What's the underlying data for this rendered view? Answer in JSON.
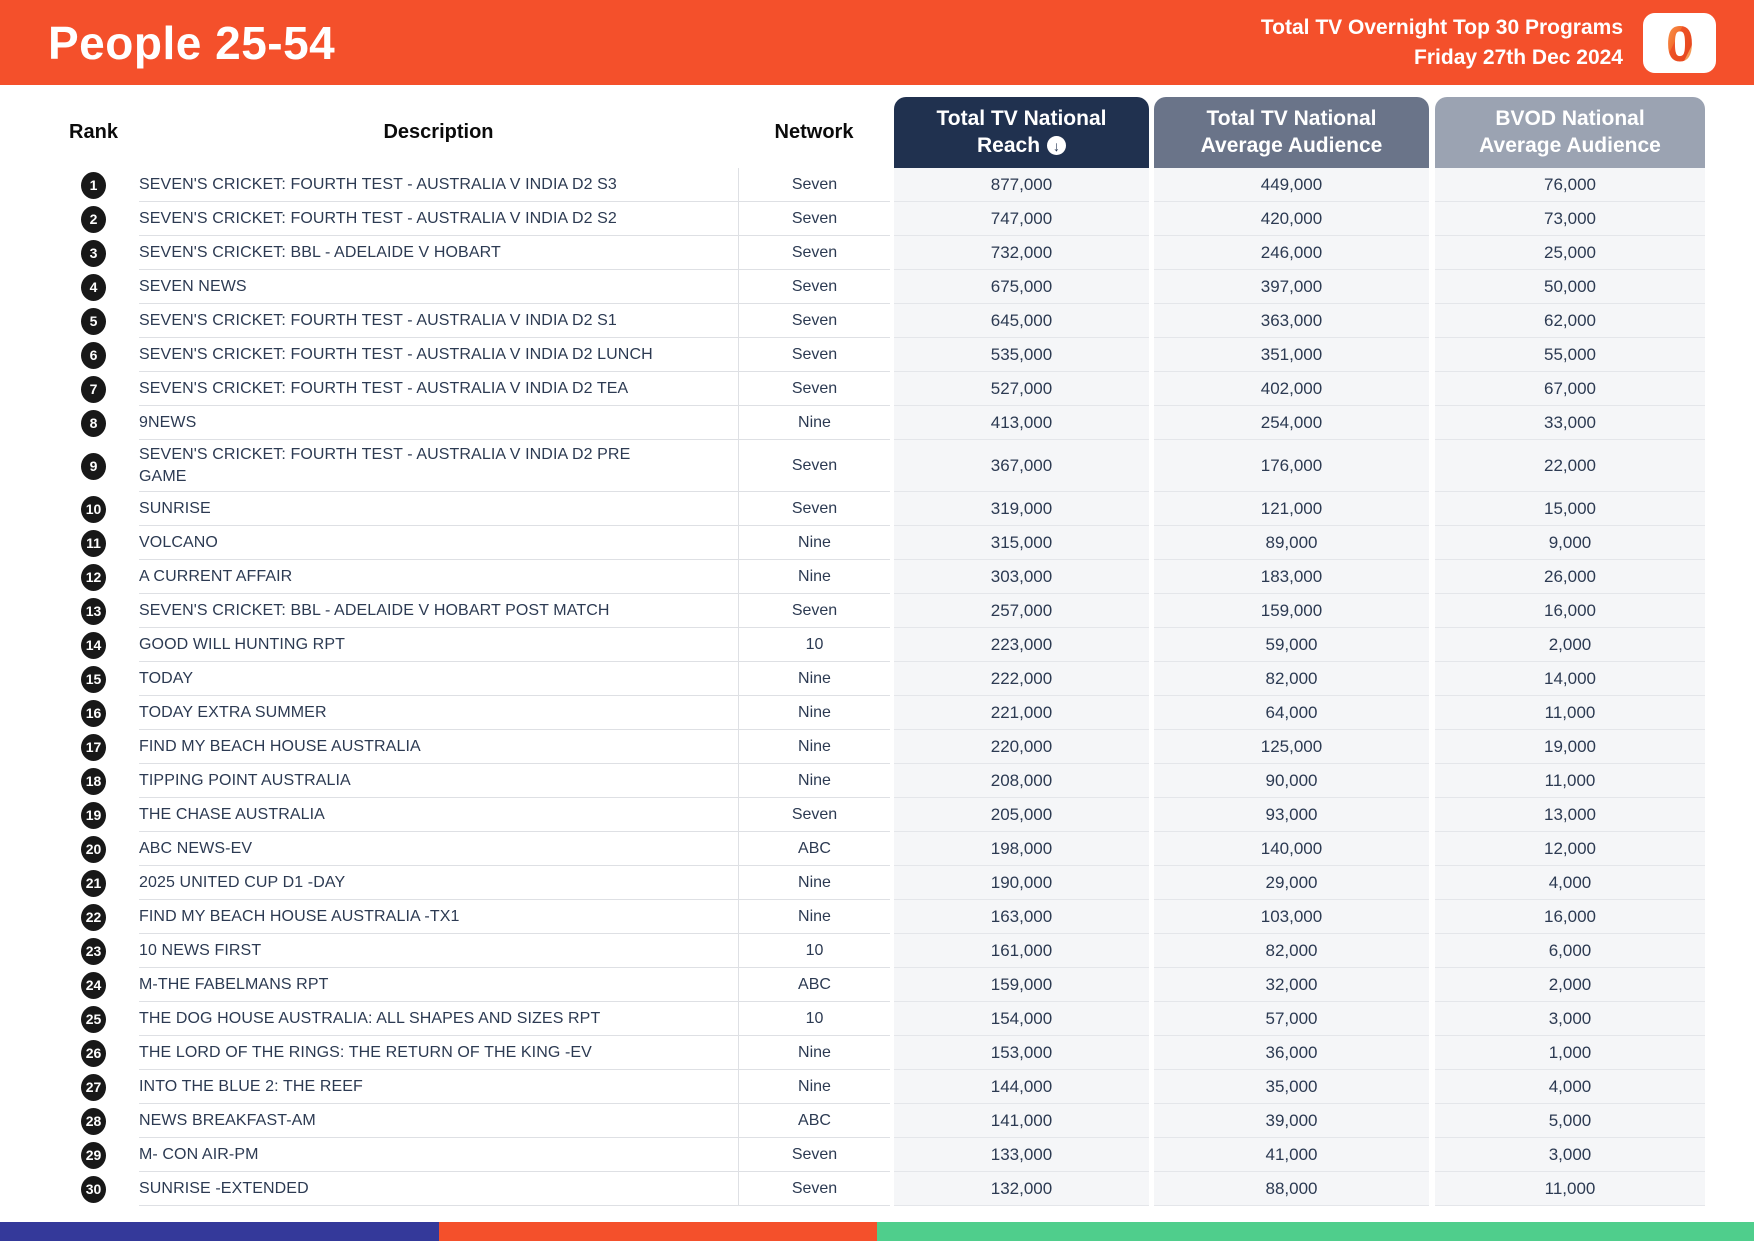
{
  "header": {
    "title": "People 25-54",
    "subtitle_line1": "Total TV Overnight Top 30 Programs",
    "subtitle_line2": "Friday 27th Dec 2024",
    "logo_character": "0",
    "banner_color": "#F4502B"
  },
  "icons": {
    "sort_descending": "↓"
  },
  "table": {
    "columns": {
      "rank": "Rank",
      "description": "Description",
      "network": "Network",
      "reach": {
        "line1": "Total TV National",
        "line2": "Reach"
      },
      "avg": {
        "line1": "Total TV National",
        "line2": "Average Audience"
      },
      "bvod": {
        "line1": "BVOD National",
        "line2": "Average Audience"
      }
    },
    "header_colors": {
      "reach": "#20314F",
      "avg": "#6A7489",
      "bvod": "#9BA3B2"
    },
    "rows": [
      {
        "rank": "1",
        "description": "SEVEN'S CRICKET: FOURTH TEST - AUSTRALIA V INDIA D2 S3",
        "network": "Seven",
        "reach": "877,000",
        "avg": "449,000",
        "bvod": "76,000"
      },
      {
        "rank": "2",
        "description": "SEVEN'S CRICKET: FOURTH TEST - AUSTRALIA V INDIA D2 S2",
        "network": "Seven",
        "reach": "747,000",
        "avg": "420,000",
        "bvod": "73,000"
      },
      {
        "rank": "3",
        "description": "SEVEN'S CRICKET: BBL - ADELAIDE V HOBART",
        "network": "Seven",
        "reach": "732,000",
        "avg": "246,000",
        "bvod": "25,000"
      },
      {
        "rank": "4",
        "description": "SEVEN NEWS",
        "network": "Seven",
        "reach": "675,000",
        "avg": "397,000",
        "bvod": "50,000"
      },
      {
        "rank": "5",
        "description": "SEVEN'S CRICKET: FOURTH TEST - AUSTRALIA V INDIA D2 S1",
        "network": "Seven",
        "reach": "645,000",
        "avg": "363,000",
        "bvod": "62,000"
      },
      {
        "rank": "6",
        "description": "SEVEN'S CRICKET: FOURTH TEST - AUSTRALIA V INDIA D2 LUNCH",
        "network": "Seven",
        "reach": "535,000",
        "avg": "351,000",
        "bvod": "55,000"
      },
      {
        "rank": "7",
        "description": "SEVEN'S CRICKET: FOURTH TEST - AUSTRALIA V INDIA D2 TEA",
        "network": "Seven",
        "reach": "527,000",
        "avg": "402,000",
        "bvod": "67,000"
      },
      {
        "rank": "8",
        "description": "9NEWS",
        "network": "Nine",
        "reach": "413,000",
        "avg": "254,000",
        "bvod": "33,000"
      },
      {
        "rank": "9",
        "description": "SEVEN'S CRICKET: FOURTH TEST - AUSTRALIA V INDIA D2 PRE GAME",
        "network": "Seven",
        "reach": "367,000",
        "avg": "176,000",
        "bvod": "22,000"
      },
      {
        "rank": "10",
        "description": "SUNRISE",
        "network": "Seven",
        "reach": "319,000",
        "avg": "121,000",
        "bvod": "15,000"
      },
      {
        "rank": "11",
        "description": "VOLCANO",
        "network": "Nine",
        "reach": "315,000",
        "avg": "89,000",
        "bvod": "9,000"
      },
      {
        "rank": "12",
        "description": "A CURRENT AFFAIR",
        "network": "Nine",
        "reach": "303,000",
        "avg": "183,000",
        "bvod": "26,000"
      },
      {
        "rank": "13",
        "description": "SEVEN'S CRICKET: BBL - ADELAIDE V HOBART POST MATCH",
        "network": "Seven",
        "reach": "257,000",
        "avg": "159,000",
        "bvod": "16,000"
      },
      {
        "rank": "14",
        "description": "GOOD WILL HUNTING RPT",
        "network": "10",
        "reach": "223,000",
        "avg": "59,000",
        "bvod": "2,000"
      },
      {
        "rank": "15",
        "description": "TODAY",
        "network": "Nine",
        "reach": "222,000",
        "avg": "82,000",
        "bvod": "14,000"
      },
      {
        "rank": "16",
        "description": "TODAY EXTRA SUMMER",
        "network": "Nine",
        "reach": "221,000",
        "avg": "64,000",
        "bvod": "11,000"
      },
      {
        "rank": "17",
        "description": "FIND MY BEACH HOUSE AUSTRALIA",
        "network": "Nine",
        "reach": "220,000",
        "avg": "125,000",
        "bvod": "19,000"
      },
      {
        "rank": "18",
        "description": "TIPPING POINT AUSTRALIA",
        "network": "Nine",
        "reach": "208,000",
        "avg": "90,000",
        "bvod": "11,000"
      },
      {
        "rank": "19",
        "description": "THE CHASE AUSTRALIA",
        "network": "Seven",
        "reach": "205,000",
        "avg": "93,000",
        "bvod": "13,000"
      },
      {
        "rank": "20",
        "description": "ABC NEWS-EV",
        "network": "ABC",
        "reach": "198,000",
        "avg": "140,000",
        "bvod": "12,000"
      },
      {
        "rank": "21",
        "description": "2025 UNITED CUP D1 -DAY",
        "network": "Nine",
        "reach": "190,000",
        "avg": "29,000",
        "bvod": "4,000"
      },
      {
        "rank": "22",
        "description": "FIND MY BEACH HOUSE AUSTRALIA -TX1",
        "network": "Nine",
        "reach": "163,000",
        "avg": "103,000",
        "bvod": "16,000"
      },
      {
        "rank": "23",
        "description": "10 NEWS FIRST",
        "network": "10",
        "reach": "161,000",
        "avg": "82,000",
        "bvod": "6,000"
      },
      {
        "rank": "24",
        "description": "M-THE FABELMANS RPT",
        "network": "ABC",
        "reach": "159,000",
        "avg": "32,000",
        "bvod": "2,000"
      },
      {
        "rank": "25",
        "description": "THE DOG HOUSE AUSTRALIA: ALL SHAPES AND SIZES RPT",
        "network": "10",
        "reach": "154,000",
        "avg": "57,000",
        "bvod": "3,000"
      },
      {
        "rank": "26",
        "description": "THE LORD OF THE RINGS: THE RETURN OF THE KING -EV",
        "network": "Nine",
        "reach": "153,000",
        "avg": "36,000",
        "bvod": "1,000"
      },
      {
        "rank": "27",
        "description": "INTO THE BLUE 2: THE REEF",
        "network": "Nine",
        "reach": "144,000",
        "avg": "35,000",
        "bvod": "4,000"
      },
      {
        "rank": "28",
        "description": "NEWS BREAKFAST-AM",
        "network": "ABC",
        "reach": "141,000",
        "avg": "39,000",
        "bvod": "5,000"
      },
      {
        "rank": "29",
        "description": "M- CON AIR-PM",
        "network": "Seven",
        "reach": "133,000",
        "avg": "41,000",
        "bvod": "3,000"
      },
      {
        "rank": "30",
        "description": "SUNRISE -EXTENDED",
        "network": "Seven",
        "reach": "132,000",
        "avg": "88,000",
        "bvod": "11,000"
      }
    ]
  },
  "footer": {
    "stripes": [
      {
        "color": "#34399A",
        "width": "25%"
      },
      {
        "color": "#F4502B",
        "width": "25%"
      },
      {
        "color": "#4FCE8C",
        "width": "50%"
      }
    ]
  }
}
